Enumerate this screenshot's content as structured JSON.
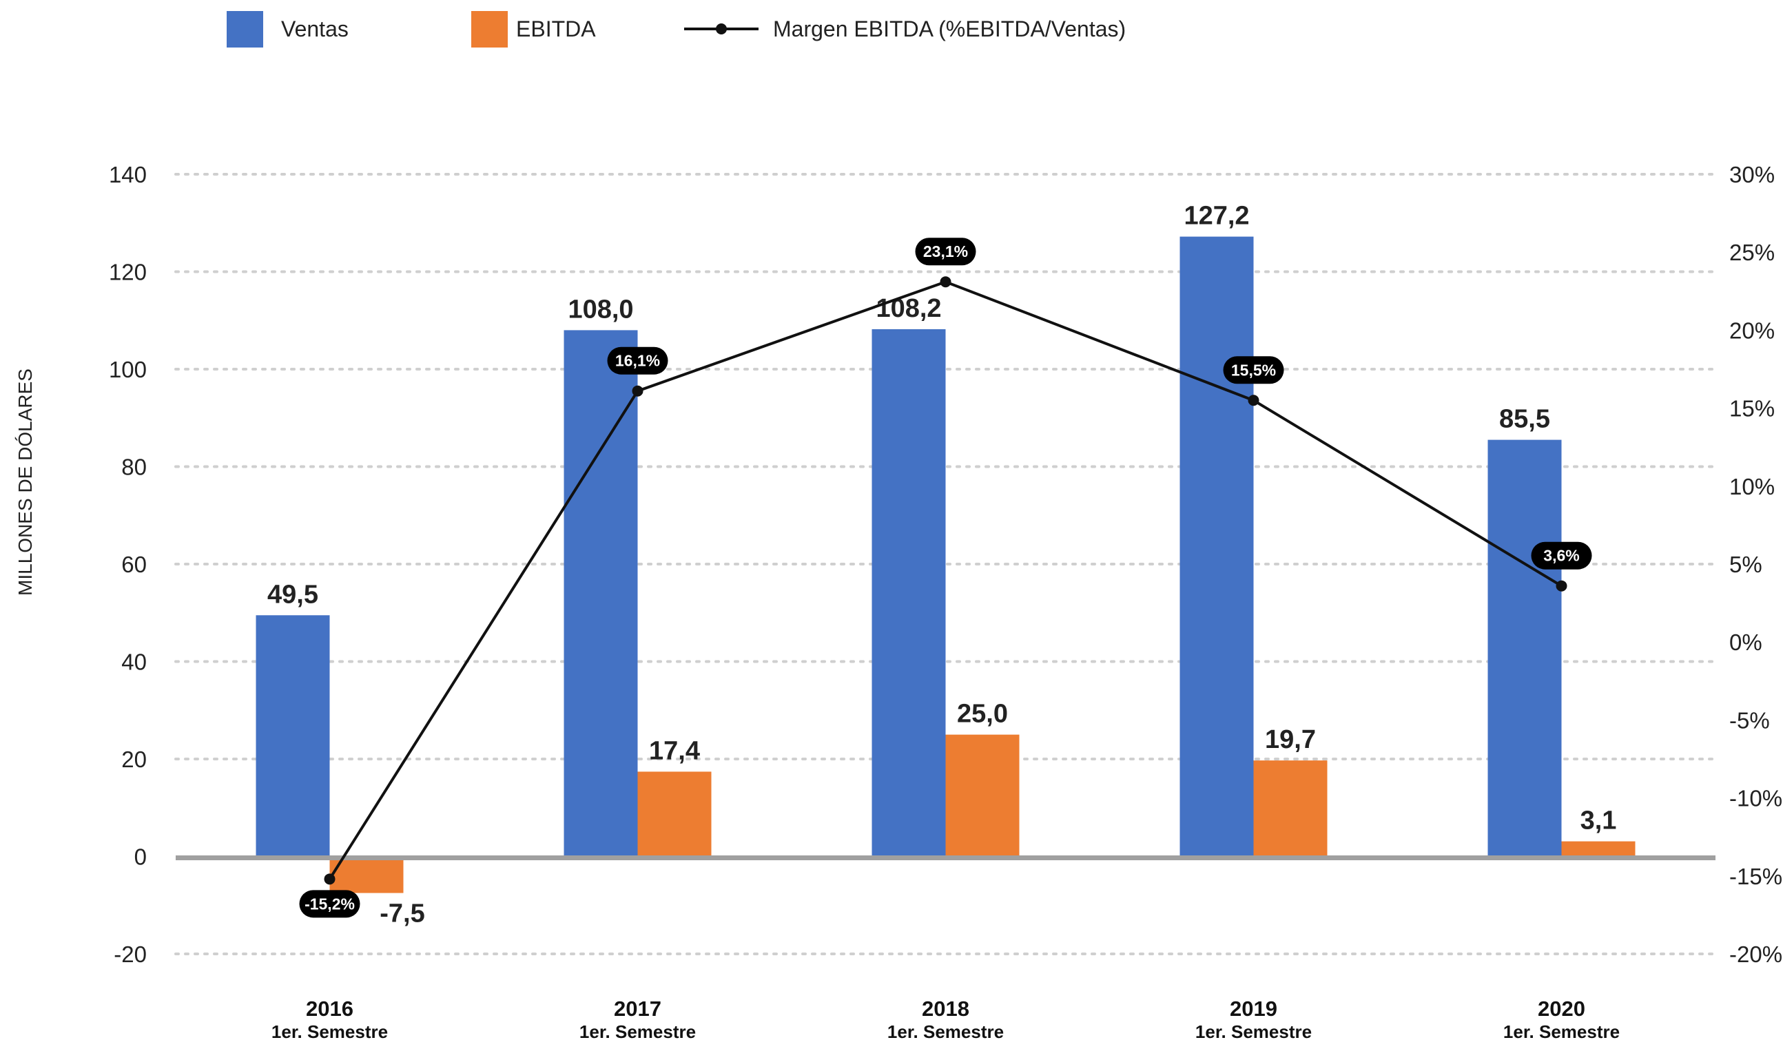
{
  "chart_data": {
    "type": "bar",
    "categories": [
      "2016",
      "2017",
      "2018",
      "2019",
      "2020"
    ],
    "category_sublabels": [
      "1er. Semestre",
      "1er. Semestre",
      "1er. Semestre",
      "1er. Semestre",
      "1er. Semestre"
    ],
    "series": [
      {
        "name": "Ventas",
        "type": "bar",
        "axis": "left",
        "color": "#4472C4",
        "values": [
          49.5,
          108.0,
          108.2,
          127.2,
          85.5
        ],
        "labels": [
          "49,5",
          "108,0",
          "108,2",
          "127,2",
          "85,5"
        ]
      },
      {
        "name": "EBITDA",
        "type": "bar",
        "axis": "left",
        "color": "#ED7D31",
        "values": [
          -7.5,
          17.4,
          25.0,
          19.7,
          3.1
        ],
        "labels": [
          "-7,5",
          "17,4",
          "25,0",
          "19,7",
          "3,1"
        ]
      },
      {
        "name": "Margen EBITDA (%EBITDA/Ventas)",
        "type": "line",
        "axis": "right",
        "color": "#111111",
        "values": [
          -15.2,
          16.1,
          23.1,
          15.5,
          3.6
        ],
        "labels": [
          "-15,2%",
          "16,1%",
          "23,1%",
          "15,5%",
          "3,6%"
        ]
      }
    ],
    "ylabel": "MILLONES DE DÓLARES",
    "ylim": [
      -20,
      140
    ],
    "yticks": [
      -20,
      0,
      20,
      40,
      60,
      80,
      100,
      120,
      140
    ],
    "ytick_labels": [
      "-20",
      "0",
      "20",
      "40",
      "60",
      "80",
      "100",
      "120",
      "140"
    ],
    "y2lim": [
      -20,
      30
    ],
    "y2ticks": [
      -20,
      -15,
      -10,
      -5,
      0,
      5,
      10,
      15,
      20,
      25,
      30
    ],
    "y2tick_labels": [
      "-20%",
      "-15%",
      "-10%",
      "-5%",
      "0%",
      "5%",
      "10%",
      "15%",
      "20%",
      "25%",
      "30%"
    ],
    "grid": true,
    "legend_position": "top-left"
  }
}
